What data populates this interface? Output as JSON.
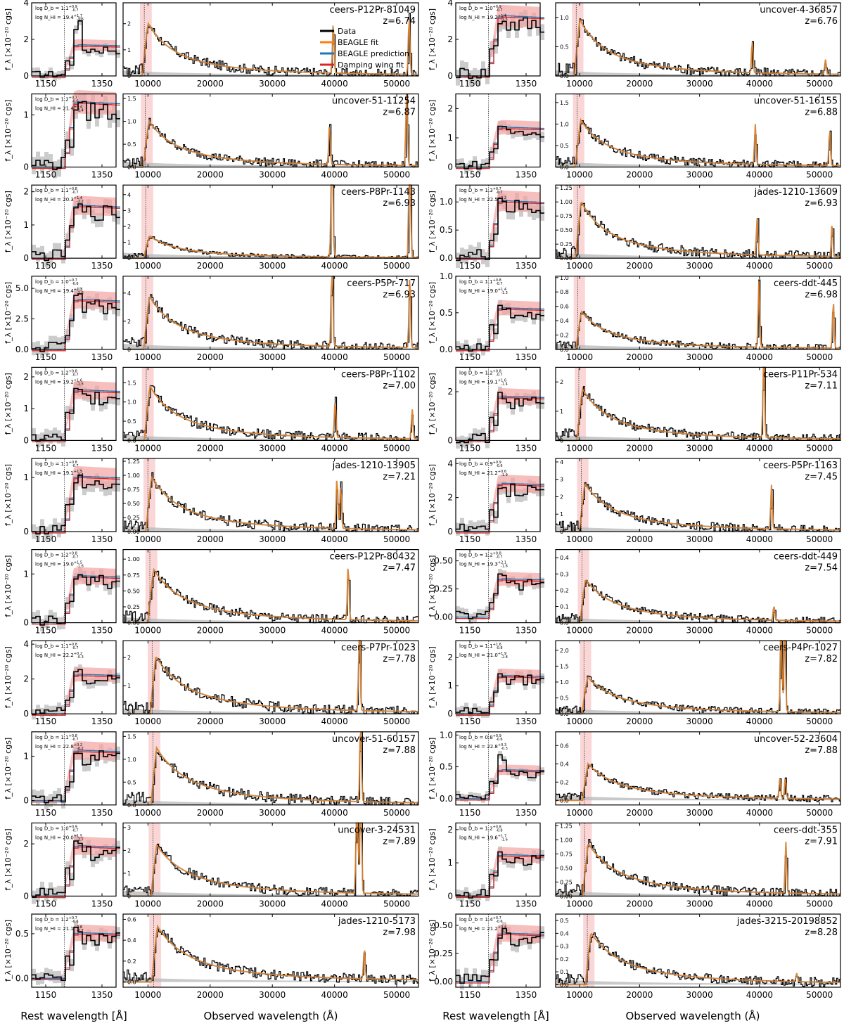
{
  "figure": {
    "xlabel_rest": "Rest wavelength [Å]",
    "xlabel_obs": "Observed wavelength (Å)",
    "ylabel": "f_λ [×10⁻²⁰ cgs]",
    "rest_ticks": [
      "1150",
      "1350"
    ],
    "obs_ticks": [
      "10000",
      "20000",
      "30000",
      "40000",
      "50000"
    ],
    "colors": {
      "data": "#000000",
      "beagle_fit": "#ff7f0e",
      "beagle_prediction": "#1f77b4",
      "damping_wing_fit": "#d62728",
      "uncertainty": "#bbbbbb",
      "wing_band": "#f4a3a3"
    }
  },
  "chart_data": {
    "type": "line",
    "legend": {
      "placement": "top-center of first panel",
      "entries": [
        "Data",
        "BEAGLE fit",
        "BEAGLE prediction",
        "Damping wing fit"
      ]
    },
    "rest_xlim": [
      1100,
      1400
    ],
    "obs_xlim": [
      6000,
      53500
    ],
    "panels": [
      {
        "name": "ceers-P12Pr-81049",
        "z": "z=6.74",
        "z_value": 6.74,
        "logDb": "log D_b = 1.1^{+0.9}_{-0.7}",
        "logNHI": "log N_HI = 19.4^{+1.7}_{-1.6}",
        "rest_yticks": [
          "0",
          "2",
          "4"
        ],
        "rest_ylim": [
          0,
          4
        ],
        "obs_yticks": [
          "0",
          "1",
          "2"
        ],
        "obs_ylim": [
          0,
          2.8
        ],
        "peak_obs": 2.3,
        "peak_rest": 2.9,
        "plateau_rest": 1.5,
        "lines": [
          {
            "x": 39800,
            "h": 0.7
          },
          {
            "x": 52000,
            "h": 0.8
          }
        ]
      },
      {
        "name": "uncover-4-36857",
        "z": "z=6.76",
        "z_value": 6.76,
        "logDb": "log D_b = 1.0^{+0.9}_{-0.7}",
        "logNHI": "log N_HI = 19.2^{+1.4}_{-1.5}",
        "rest_yticks": [
          "0",
          "2",
          "4"
        ],
        "rest_ylim": [
          0,
          4
        ],
        "obs_yticks": [
          "0.0",
          "0.5",
          "1.0"
        ],
        "obs_ylim": [
          0,
          1.25
        ],
        "peak_obs": 1.1,
        "peak_rest": 3.2,
        "plateau_rest": 2.9,
        "lines": [
          {
            "x": 38800,
            "h": 0.45
          },
          {
            "x": 51000,
            "h": 0.2
          }
        ]
      },
      {
        "name": "uncover-51-11254",
        "z": "z=6.87",
        "z_value": 6.87,
        "logDb": "log D_b = 1.2^{+0.7}_{-0.6}",
        "logNHI": "log N_HI = 21.4^{+0.4}_{-1.4}",
        "rest_yticks": [
          "0",
          "1"
        ],
        "rest_ylim": [
          0,
          1.4
        ],
        "obs_yticks": [
          "0.0",
          "0.5",
          "1.0",
          "1.5"
        ],
        "obs_ylim": [
          0,
          1.6
        ],
        "peak_obs": 1.15,
        "peak_rest": 1.2,
        "plateau_rest": 1.1,
        "lines": [
          {
            "x": 39200,
            "h": 0.55
          },
          {
            "x": 51600,
            "h": 1.1
          }
        ]
      },
      {
        "name": "uncover-51-16155",
        "z": "z=6.88",
        "z_value": 6.88,
        "logDb": "",
        "logNHI": "",
        "rest_yticks": [
          "0",
          "1",
          "2"
        ],
        "rest_ylim": [
          0,
          2.5
        ],
        "obs_yticks": [
          "0.0",
          "0.5",
          "1.0",
          "1.5"
        ],
        "obs_ylim": [
          0,
          1.7
        ],
        "peak_obs": 1.25,
        "peak_rest": 1.5,
        "plateau_rest": 1.2,
        "lines": [
          {
            "x": 39300,
            "h": 0.55
          },
          {
            "x": 51700,
            "h": 0.5
          }
        ]
      },
      {
        "name": "ceers-P8Pr-1143",
        "z": "z=6.93",
        "z_value": 6.93,
        "logDb": "log D_b = 1.1^{+0.8}_{-0.7}",
        "logNHI": "log N_HI = 20.3^{+1.4}_{-2.2}",
        "rest_yticks": [
          "0",
          "1",
          "2"
        ],
        "rest_ylim": [
          0,
          2.2
        ],
        "obs_yticks": [
          "0",
          "1",
          "2",
          "3",
          "4"
        ],
        "obs_ylim": [
          0,
          4.6
        ],
        "peak_obs": 1.6,
        "peak_rest": 1.6,
        "plateau_rest": 1.4,
        "lines": [
          {
            "x": 39600,
            "h": 3.0
          },
          {
            "x": 52100,
            "h": 2.4
          }
        ]
      },
      {
        "name": "jades-1210-13609",
        "z": "z=6.93",
        "z_value": 6.93,
        "logDb": "log D_b = 1.3^{+0.7}_{-0.7}",
        "logNHI": "log N_HI = 22.5^{+0.2}_{-0.2}",
        "rest_yticks": [
          "0.0",
          "0.5",
          "1.0"
        ],
        "rest_ylim": [
          0,
          1.3
        ],
        "obs_yticks": [
          "0.00",
          "0.25",
          "0.50",
          "0.75",
          "1.00",
          "1.25"
        ],
        "obs_ylim": [
          0,
          1.3
        ],
        "peak_obs": 1.15,
        "peak_rest": 1.1,
        "plateau_rest": 0.9,
        "lines": [
          {
            "x": 39600,
            "h": 0.5
          },
          {
            "x": 52100,
            "h": 0.45
          }
        ]
      },
      {
        "name": "ceers-P5Pr-717",
        "z": "z=6.93",
        "z_value": 6.93,
        "logDb": "log D_b = 1.0^{+0.7}_{-0.6}",
        "logNHI": "log N_HI = 19.4^{+1.3}_{-1.6}",
        "rest_yticks": [
          "0.0",
          "2.5",
          "5.0"
        ],
        "rest_ylim": [
          0,
          6
        ],
        "obs_yticks": [
          "0",
          "2",
          "4"
        ],
        "obs_ylim": [
          0,
          5.2
        ],
        "peak_obs": 4.3,
        "peak_rest": 4.5,
        "plateau_rest": 3.6,
        "lines": [
          {
            "x": 39600,
            "h": 1.5
          },
          {
            "x": 52100,
            "h": 1.0
          }
        ]
      },
      {
        "name": "ceers-ddt-445",
        "z": "z=6.98",
        "z_value": 6.98,
        "logDb": "log D_b = 1.1^{+0.8}_{-0.7}",
        "logNHI": "log N_HI = 19.0^{+1.4}_{-1.3}",
        "rest_yticks": [
          "0.0",
          "0.5",
          "1.0"
        ],
        "rest_ylim": [
          0,
          1.0
        ],
        "obs_yticks": [
          "0.0",
          "0.2",
          "0.4",
          "0.6",
          "0.8",
          "1.0"
        ],
        "obs_ylim": [
          0,
          1.02
        ],
        "peak_obs": 0.6,
        "peak_rest": 0.6,
        "plateau_rest": 0.5,
        "lines": [
          {
            "x": 39900,
            "h": 0.9
          },
          {
            "x": 52300,
            "h": 0.65
          }
        ]
      },
      {
        "name": "ceers-P8Pr-1102",
        "z": "z=7.00",
        "z_value": 7.0,
        "logDb": "log D_b = 1.2^{+0.8}_{-0.7}",
        "logNHI": "log N_HI = 19.2^{+1.6}_{-1.5}",
        "rest_yticks": [
          "0",
          "1",
          "2"
        ],
        "rest_ylim": [
          0,
          2.3
        ],
        "obs_yticks": [
          "0.0",
          "0.5",
          "1.0",
          "1.5"
        ],
        "obs_ylim": [
          0,
          1.9
        ],
        "peak_obs": 1.6,
        "peak_rest": 1.6,
        "plateau_rest": 1.4,
        "lines": [
          {
            "x": 40100,
            "h": 0.5
          },
          {
            "x": 52500,
            "h": 0.4
          }
        ]
      },
      {
        "name": "ceers-P11Pr-534",
        "z": "z=7.11",
        "z_value": 7.11,
        "logDb": "log D_b = 1.2^{+0.8}_{-0.7}",
        "logNHI": "log N_HI = 19.1^{+1.6}_{-1.4}",
        "rest_yticks": [
          "0",
          "2"
        ],
        "rest_ylim": [
          0,
          3
        ],
        "obs_yticks": [
          "0",
          "1",
          "2"
        ],
        "obs_ylim": [
          0,
          2.5
        ],
        "peak_obs": 2.0,
        "peak_rest": 1.9,
        "plateau_rest": 1.6,
        "lines": [
          {
            "x": 40700,
            "h": 1.3
          }
        ]
      },
      {
        "name": "jades-1210-13905",
        "z": "z=7.21",
        "z_value": 7.21,
        "logDb": "log D_b = 1.1^{+0.8}_{-0.7}",
        "logNHI": "log N_HI = 19.1^{+1.5}_{-1.4}",
        "rest_yticks": [
          "0",
          "1"
        ],
        "rest_ylim": [
          0,
          1.35
        ],
        "obs_yticks": [
          "0.00",
          "0.25",
          "0.50",
          "0.75",
          "1.00",
          "1.25"
        ],
        "obs_ylim": [
          0,
          1.3
        ],
        "peak_obs": 1.1,
        "peak_rest": 1.05,
        "plateau_rest": 0.9,
        "lines": [
          {
            "x": 40400,
            "h": 0.7
          },
          {
            "x": 41000,
            "h": 0.6
          }
        ]
      },
      {
        "name": "ceers-P5Pr-1163",
        "z": "z=7.45",
        "z_value": 7.45,
        "logDb": "log D_b = 0.9^{+0.9}_{-0.6}",
        "logNHI": "log N_HI = 21.2^{+0.6}_{-1.9}",
        "rest_yticks": [
          "0",
          "2",
          "4"
        ],
        "rest_ylim": [
          0,
          4.3
        ],
        "obs_yticks": [
          "0",
          "1",
          "2",
          "3",
          "4"
        ],
        "obs_ylim": [
          0,
          4.2
        ],
        "peak_obs": 3.1,
        "peak_rest": 2.9,
        "plateau_rest": 2.5,
        "lines": [
          {
            "x": 42000,
            "h": 0.6
          }
        ]
      },
      {
        "name": "ceers-P12Pr-80432",
        "z": "z=7.47",
        "z_value": 7.47,
        "logDb": "log D_b = 1.2^{+0.8}_{-0.7}",
        "logNHI": "log N_HI = 19.0^{+1.5}_{-1.6}",
        "rest_yticks": [
          "0",
          "1"
        ],
        "rest_ylim": [
          0,
          1.5
        ],
        "obs_yticks": [
          "0.00",
          "0.25",
          "0.50",
          "0.75",
          "1.00"
        ],
        "obs_ylim": [
          0,
          1.15
        ],
        "peak_obs": 0.95,
        "peak_rest": 1.0,
        "plateau_rest": 0.85,
        "lines": [
          {
            "x": 42200,
            "h": 0.75
          }
        ]
      },
      {
        "name": "ceers-ddt-449",
        "z": "z=7.54",
        "z_value": 7.54,
        "logDb": "log D_b = 1.2^{+0.8}_{-0.7}",
        "logNHI": "log N_HI = 19.3^{+2.1}_{-1.6}",
        "rest_yticks": [
          "0.00",
          "0.25",
          "0.50"
        ],
        "rest_ylim": [
          -0.05,
          0.6
        ],
        "obs_yticks": [
          "0.0",
          "0.1",
          "0.2",
          "0.3",
          "0.4"
        ],
        "obs_ylim": [
          0,
          0.45
        ],
        "peak_obs": 0.3,
        "peak_rest": 0.42,
        "plateau_rest": 0.3,
        "lines": [
          {
            "x": 42400,
            "h": 0.2
          }
        ]
      },
      {
        "name": "ceers-P7Pr-1023",
        "z": "z=7.78",
        "z_value": 7.78,
        "logDb": "log D_b = 1.1^{+0.8}_{-0.7}",
        "logNHI": "log N_HI = 22.2^{+0.2}_{-0.3}",
        "rest_yticks": [
          "0",
          "2",
          "4"
        ],
        "rest_ylim": [
          0,
          4.2
        ],
        "obs_yticks": [
          "0",
          "1",
          "2"
        ],
        "obs_ylim": [
          0,
          2.6
        ],
        "peak_obs": 2.3,
        "peak_rest": 2.6,
        "plateau_rest": 2.0,
        "lines": [
          {
            "x": 44000,
            "h": 1.3
          }
        ]
      },
      {
        "name": "ceers-P4Pr-1027",
        "z": "z=7.82",
        "z_value": 7.82,
        "logDb": "log D_b = 1.1^{+1.6}_{-0.8}",
        "logNHI": "log N_HI = 21.0^{+1.9}_{-2.8}",
        "rest_yticks": [
          "0",
          "1",
          "2"
        ],
        "rest_ylim": [
          0,
          2.6
        ],
        "obs_yticks": [
          "0.0",
          "0.5",
          "1.0",
          "1.5",
          "2.0"
        ],
        "obs_ylim": [
          0,
          2.3
        ],
        "peak_obs": 1.3,
        "peak_rest": 1.5,
        "plateau_rest": 1.2,
        "lines": [
          {
            "x": 43600,
            "h": 1.5
          },
          {
            "x": 44200,
            "h": 1.5
          }
        ]
      },
      {
        "name": "uncover-51-60157",
        "z": "z=7.88",
        "z_value": 7.88,
        "logDb": "log D_b = 1.1^{+0.8}_{-0.7}",
        "logNHI": "log N_HI = 22.8^{+0.2}_{-0.2}",
        "rest_yticks": [
          "0",
          "1"
        ],
        "rest_ylim": [
          -0.1,
          1.55
        ],
        "obs_yticks": [
          "0.0",
          "0.5",
          "1.0",
          "1.5"
        ],
        "obs_ylim": [
          0,
          1.6
        ],
        "peak_obs": 1.4,
        "peak_rest": 1.1,
        "plateau_rest": 1.0,
        "lines": [
          {
            "x": 44200,
            "h": 1.2
          }
        ]
      },
      {
        "name": "uncover-52-23604",
        "z": "z=7.88",
        "z_value": 7.88,
        "logDb": "log D_b = 0.8^{+0.9}_{-0.6}",
        "logNHI": "log N_HI = 22.8^{+0.3}_{-0.3}",
        "rest_yticks": [
          "0.0",
          "0.5",
          "1.0"
        ],
        "rest_ylim": [
          -0.1,
          1.05
        ],
        "obs_yticks": [
          "0.0",
          "0.2",
          "0.4",
          "0.6"
        ],
        "obs_ylim": [
          -0.05,
          0.75
        ],
        "peak_obs": 0.45,
        "peak_rest": 0.7,
        "plateau_rest": 0.4,
        "lines": [
          {
            "x": 43400,
            "h": 0.3
          },
          {
            "x": 44300,
            "h": 0.3
          }
        ]
      },
      {
        "name": "uncover-3-24531",
        "z": "z=7.89",
        "z_value": 7.89,
        "logDb": "log D_b = 1.0^{+0.9}_{-0.7}",
        "logNHI": "log N_HI = 20.0^{+1.5}_{-2.7}",
        "rest_yticks": [
          "0",
          "2"
        ],
        "rest_ylim": [
          0,
          2.8
        ],
        "obs_yticks": [
          "0",
          "1",
          "2",
          "3"
        ],
        "obs_ylim": [
          0,
          3.2
        ],
        "peak_obs": 2.5,
        "peak_rest": 2.1,
        "plateau_rest": 1.7,
        "lines": [
          {
            "x": 43600,
            "h": 2.3
          },
          {
            "x": 44200,
            "h": 2.3
          }
        ]
      },
      {
        "name": "ceers-ddt-355",
        "z": "z=7.91",
        "z_value": 7.91,
        "logDb": "log D_b = 1.2^{+0.8}_{-0.8}",
        "logNHI": "log N_HI = 19.6^{+1.7}_{-1.6}",
        "rest_yticks": [
          "0",
          "1",
          "2"
        ],
        "rest_ylim": [
          0,
          2.2
        ],
        "obs_yticks": [
          "0.00",
          "0.25",
          "0.50",
          "0.75",
          "1.00",
          "1.25"
        ],
        "obs_ylim": [
          0,
          1.3
        ],
        "peak_obs": 1.05,
        "peak_rest": 1.3,
        "plateau_rest": 1.1,
        "lines": [
          {
            "x": 44400,
            "h": 0.7
          }
        ]
      },
      {
        "name": "jades-1210-5173",
        "z": "z=7.98",
        "z_value": 7.98,
        "logDb": "log D_b = 1.2^{+0.7}_{-0.6}",
        "logNHI": "log N_HI = 21.1^{+0.6}_{-2.7}",
        "rest_yticks": [
          "0.0",
          "0.5"
        ],
        "rest_ylim": [
          -0.1,
          0.72
        ],
        "obs_yticks": [
          "0.0",
          "0.2",
          "0.4",
          "0.6"
        ],
        "obs_ylim": [
          -0.05,
          0.65
        ],
        "peak_obs": 0.6,
        "peak_rest": 0.55,
        "plateau_rest": 0.45,
        "lines": [
          {
            "x": 44800,
            "h": 0.45
          }
        ]
      },
      {
        "name": "jades-3215-20198852",
        "z": "z=8.28",
        "z_value": 8.28,
        "logDb": "log D_b = 1.4^{+0.7}_{-0.6}",
        "logNHI": "log N_HI = 21.2^{+0.4}_{-1.4}",
        "rest_yticks": [
          "0.00",
          "0.25",
          "0.50"
        ],
        "rest_ylim": [
          -0.05,
          0.6
        ],
        "obs_yticks": [
          "0.0",
          "0.1",
          "0.2",
          "0.3",
          "0.4",
          "0.5"
        ],
        "obs_ylim": [
          -0.02,
          0.55
        ],
        "peak_obs": 0.45,
        "peak_rest": 0.45,
        "plateau_rest": 0.38,
        "lines": [
          {
            "x": 46200,
            "h": 0.12
          }
        ]
      }
    ]
  }
}
